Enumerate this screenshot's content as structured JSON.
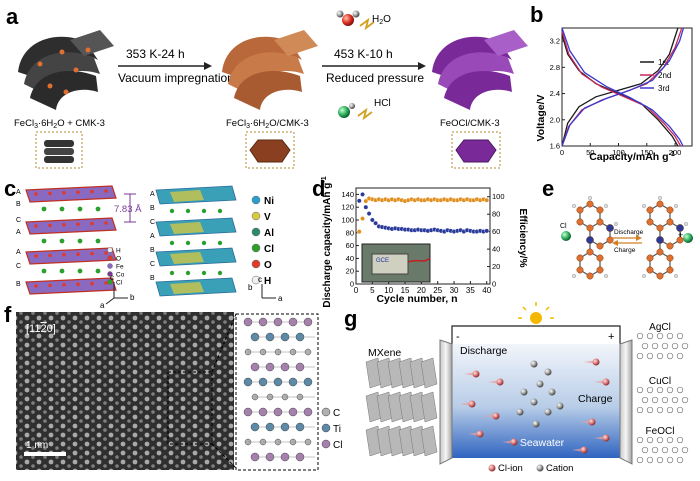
{
  "panel_labels": [
    "a",
    "b",
    "c",
    "d",
    "e",
    "f",
    "g"
  ],
  "panel_a": {
    "step1_condition": "353 K-24 h",
    "step1_method": "Vacuum impregnation",
    "step2_condition": "453 K-10 h",
    "step2_method": "Reduced pressure",
    "byproduct_water": "H",
    "byproduct_water_sub": "2",
    "byproduct_water_o": "O",
    "byproduct_hcl": "HCl",
    "material_1": "FeCl",
    "material_1_sub": "3",
    "material_1_rest": "·6H",
    "material_1_sub2": "2",
    "material_1_tail": "O + CMK-3",
    "material_2": "FeCl",
    "material_2_sub": "3",
    "material_2_rest": "·6H",
    "material_2_sub2": "2",
    "material_2_tail": "O/CMK-3",
    "material_3": "FeOCl/CMK-3"
  },
  "panel_c": {
    "spacing": "7.83 Å",
    "stack_labels_left": [
      "A",
      "B",
      "C",
      "A",
      "A",
      "C",
      "B"
    ],
    "legend_left": [
      "H",
      "O",
      "Fe",
      "Co",
      "Cl"
    ],
    "legend_right": [
      "Ni",
      "V",
      "Al",
      "Cl",
      "O",
      "H"
    ],
    "axis_left": [
      "c",
      "a",
      "b"
    ],
    "axis_right": [
      "b",
      "c",
      "a"
    ]
  },
  "panel_e": {
    "arrow_top": "Discharge",
    "arrow_bottom": "Charge",
    "ion": "Cl"
  },
  "panel_f": {
    "zone_axis": "[11",
    "zone_axis_bar": "2",
    "zone_axis_end": "0]",
    "scale": "1 nm",
    "legend": [
      "C",
      "Ti",
      "Cl"
    ]
  },
  "panel_g": {
    "minus": "-",
    "plus": "+",
    "left_material": "MXene",
    "discharge": "Discharge",
    "charge": "Charge",
    "medium": "Seawater",
    "right_materials": [
      "AgCl",
      "CuCl",
      "FeOCl"
    ],
    "legend_cl": "Cl-ion",
    "legend_cation": "Cation"
  },
  "chart_data": [
    {
      "type": "line",
      "panel": "b",
      "xlabel": "Capacity/mAh g",
      "xlabel_sup": "-1",
      "ylabel": "Voltage/V",
      "xlim": [
        0,
        230
      ],
      "ylim": [
        1.6,
        3.4
      ],
      "xticks": [
        0,
        50,
        100,
        150,
        200
      ],
      "yticks": [
        1.6,
        2.0,
        2.4,
        2.8,
        3.2
      ],
      "legend_position": "right",
      "series": [
        {
          "name": "1st",
          "color": "#1a1a1a",
          "charge": [
            [
              0,
              1.6
            ],
            [
              10,
              1.95
            ],
            [
              30,
              2.2
            ],
            [
              60,
              2.35
            ],
            [
              100,
              2.45
            ],
            [
              140,
              2.55
            ],
            [
              170,
              2.75
            ],
            [
              190,
              3.0
            ],
            [
              205,
              3.4
            ]
          ],
          "discharge": [
            [
              0,
              3.3
            ],
            [
              10,
              3.0
            ],
            [
              30,
              2.75
            ],
            [
              60,
              2.55
            ],
            [
              100,
              2.4
            ],
            [
              140,
              2.25
            ],
            [
              170,
              2.0
            ],
            [
              195,
              1.75
            ],
            [
              205,
              1.6
            ]
          ]
        },
        {
          "name": "2nd",
          "color": "#c8285a",
          "charge": [
            [
              0,
              1.6
            ],
            [
              12,
              1.9
            ],
            [
              35,
              2.15
            ],
            [
              70,
              2.3
            ],
            [
              110,
              2.42
            ],
            [
              150,
              2.55
            ],
            [
              180,
              2.8
            ],
            [
              200,
              3.1
            ],
            [
              212,
              3.4
            ]
          ],
          "discharge": [
            [
              0,
              3.35
            ],
            [
              12,
              3.0
            ],
            [
              35,
              2.7
            ],
            [
              70,
              2.5
            ],
            [
              110,
              2.35
            ],
            [
              150,
              2.2
            ],
            [
              180,
              1.95
            ],
            [
              200,
              1.75
            ],
            [
              210,
              1.6
            ]
          ]
        },
        {
          "name": "3rd",
          "color": "#3a3ad0",
          "charge": [
            [
              0,
              1.6
            ],
            [
              14,
              1.92
            ],
            [
              40,
              2.18
            ],
            [
              80,
              2.33
            ],
            [
              120,
              2.45
            ],
            [
              160,
              2.6
            ],
            [
              190,
              2.9
            ],
            [
              208,
              3.2
            ],
            [
              215,
              3.4
            ]
          ],
          "discharge": [
            [
              0,
              3.4
            ],
            [
              14,
              3.05
            ],
            [
              40,
              2.72
            ],
            [
              80,
              2.5
            ],
            [
              120,
              2.34
            ],
            [
              160,
              2.15
            ],
            [
              190,
              1.9
            ],
            [
              208,
              1.7
            ],
            [
              214,
              1.6
            ]
          ]
        }
      ]
    },
    {
      "type": "scatter",
      "panel": "d",
      "xlabel": "Cycle number, n",
      "ylabel": "Discharge capacity/mAh g",
      "ylabel_sup": "-1",
      "y2label": "Efficiency/%",
      "xlim": [
        0,
        41
      ],
      "ylim": [
        0,
        150
      ],
      "y2lim": [
        0,
        110
      ],
      "xticks": [
        0,
        5,
        10,
        15,
        20,
        25,
        30,
        35,
        40
      ],
      "yticks": [
        0,
        20,
        40,
        60,
        80,
        100,
        120,
        140
      ],
      "y2ticks": [
        0,
        20,
        40,
        60,
        80,
        100
      ],
      "inset_label": "GCE",
      "series": [
        {
          "name": "Discharge capacity",
          "axis": "left",
          "color": "#2a3a9a",
          "x": [
            1,
            2,
            3,
            4,
            5,
            6,
            7,
            8,
            9,
            10,
            11,
            12,
            13,
            14,
            15,
            16,
            17,
            18,
            19,
            20,
            21,
            22,
            23,
            24,
            25,
            26,
            27,
            28,
            29,
            30,
            31,
            32,
            33,
            34,
            35,
            36,
            37,
            38,
            39,
            40
          ],
          "values": [
            130,
            140,
            120,
            110,
            100,
            95,
            90,
            89,
            88,
            87,
            86,
            87,
            86,
            86,
            85,
            85,
            84,
            84,
            85,
            84,
            84,
            83,
            84,
            85,
            84,
            83,
            82,
            84,
            83,
            82,
            83,
            84,
            82,
            84,
            83,
            82,
            82,
            83,
            82,
            83
          ]
        },
        {
          "name": "Efficiency",
          "axis": "right",
          "color": "#e09020",
          "x": [
            1,
            2,
            3,
            4,
            5,
            6,
            7,
            8,
            9,
            10,
            11,
            12,
            13,
            14,
            15,
            16,
            17,
            18,
            19,
            20,
            21,
            22,
            23,
            24,
            25,
            26,
            27,
            28,
            29,
            30,
            31,
            32,
            33,
            34,
            35,
            36,
            37,
            38,
            39,
            40
          ],
          "values": [
            60,
            75,
            95,
            98,
            97,
            96,
            97,
            96,
            97,
            96,
            97,
            96,
            97,
            96,
            95,
            96,
            97,
            96,
            97,
            96,
            96,
            97,
            96,
            97,
            96,
            96,
            97,
            96,
            97,
            96,
            96,
            97,
            96,
            97,
            96,
            96,
            97,
            96,
            97,
            96
          ]
        }
      ]
    }
  ],
  "colors": {
    "cmk": "#2e2e2e",
    "fecl_cmk": "#b86a3a",
    "feocl_cmk": "#8a3aa8",
    "fe_atom": "#e06020",
    "cl_atom": "#2ca02c",
    "mxene": "#a0a0a0",
    "water_top": "#e8eef6",
    "water_bottom": "#2f6cc8"
  }
}
